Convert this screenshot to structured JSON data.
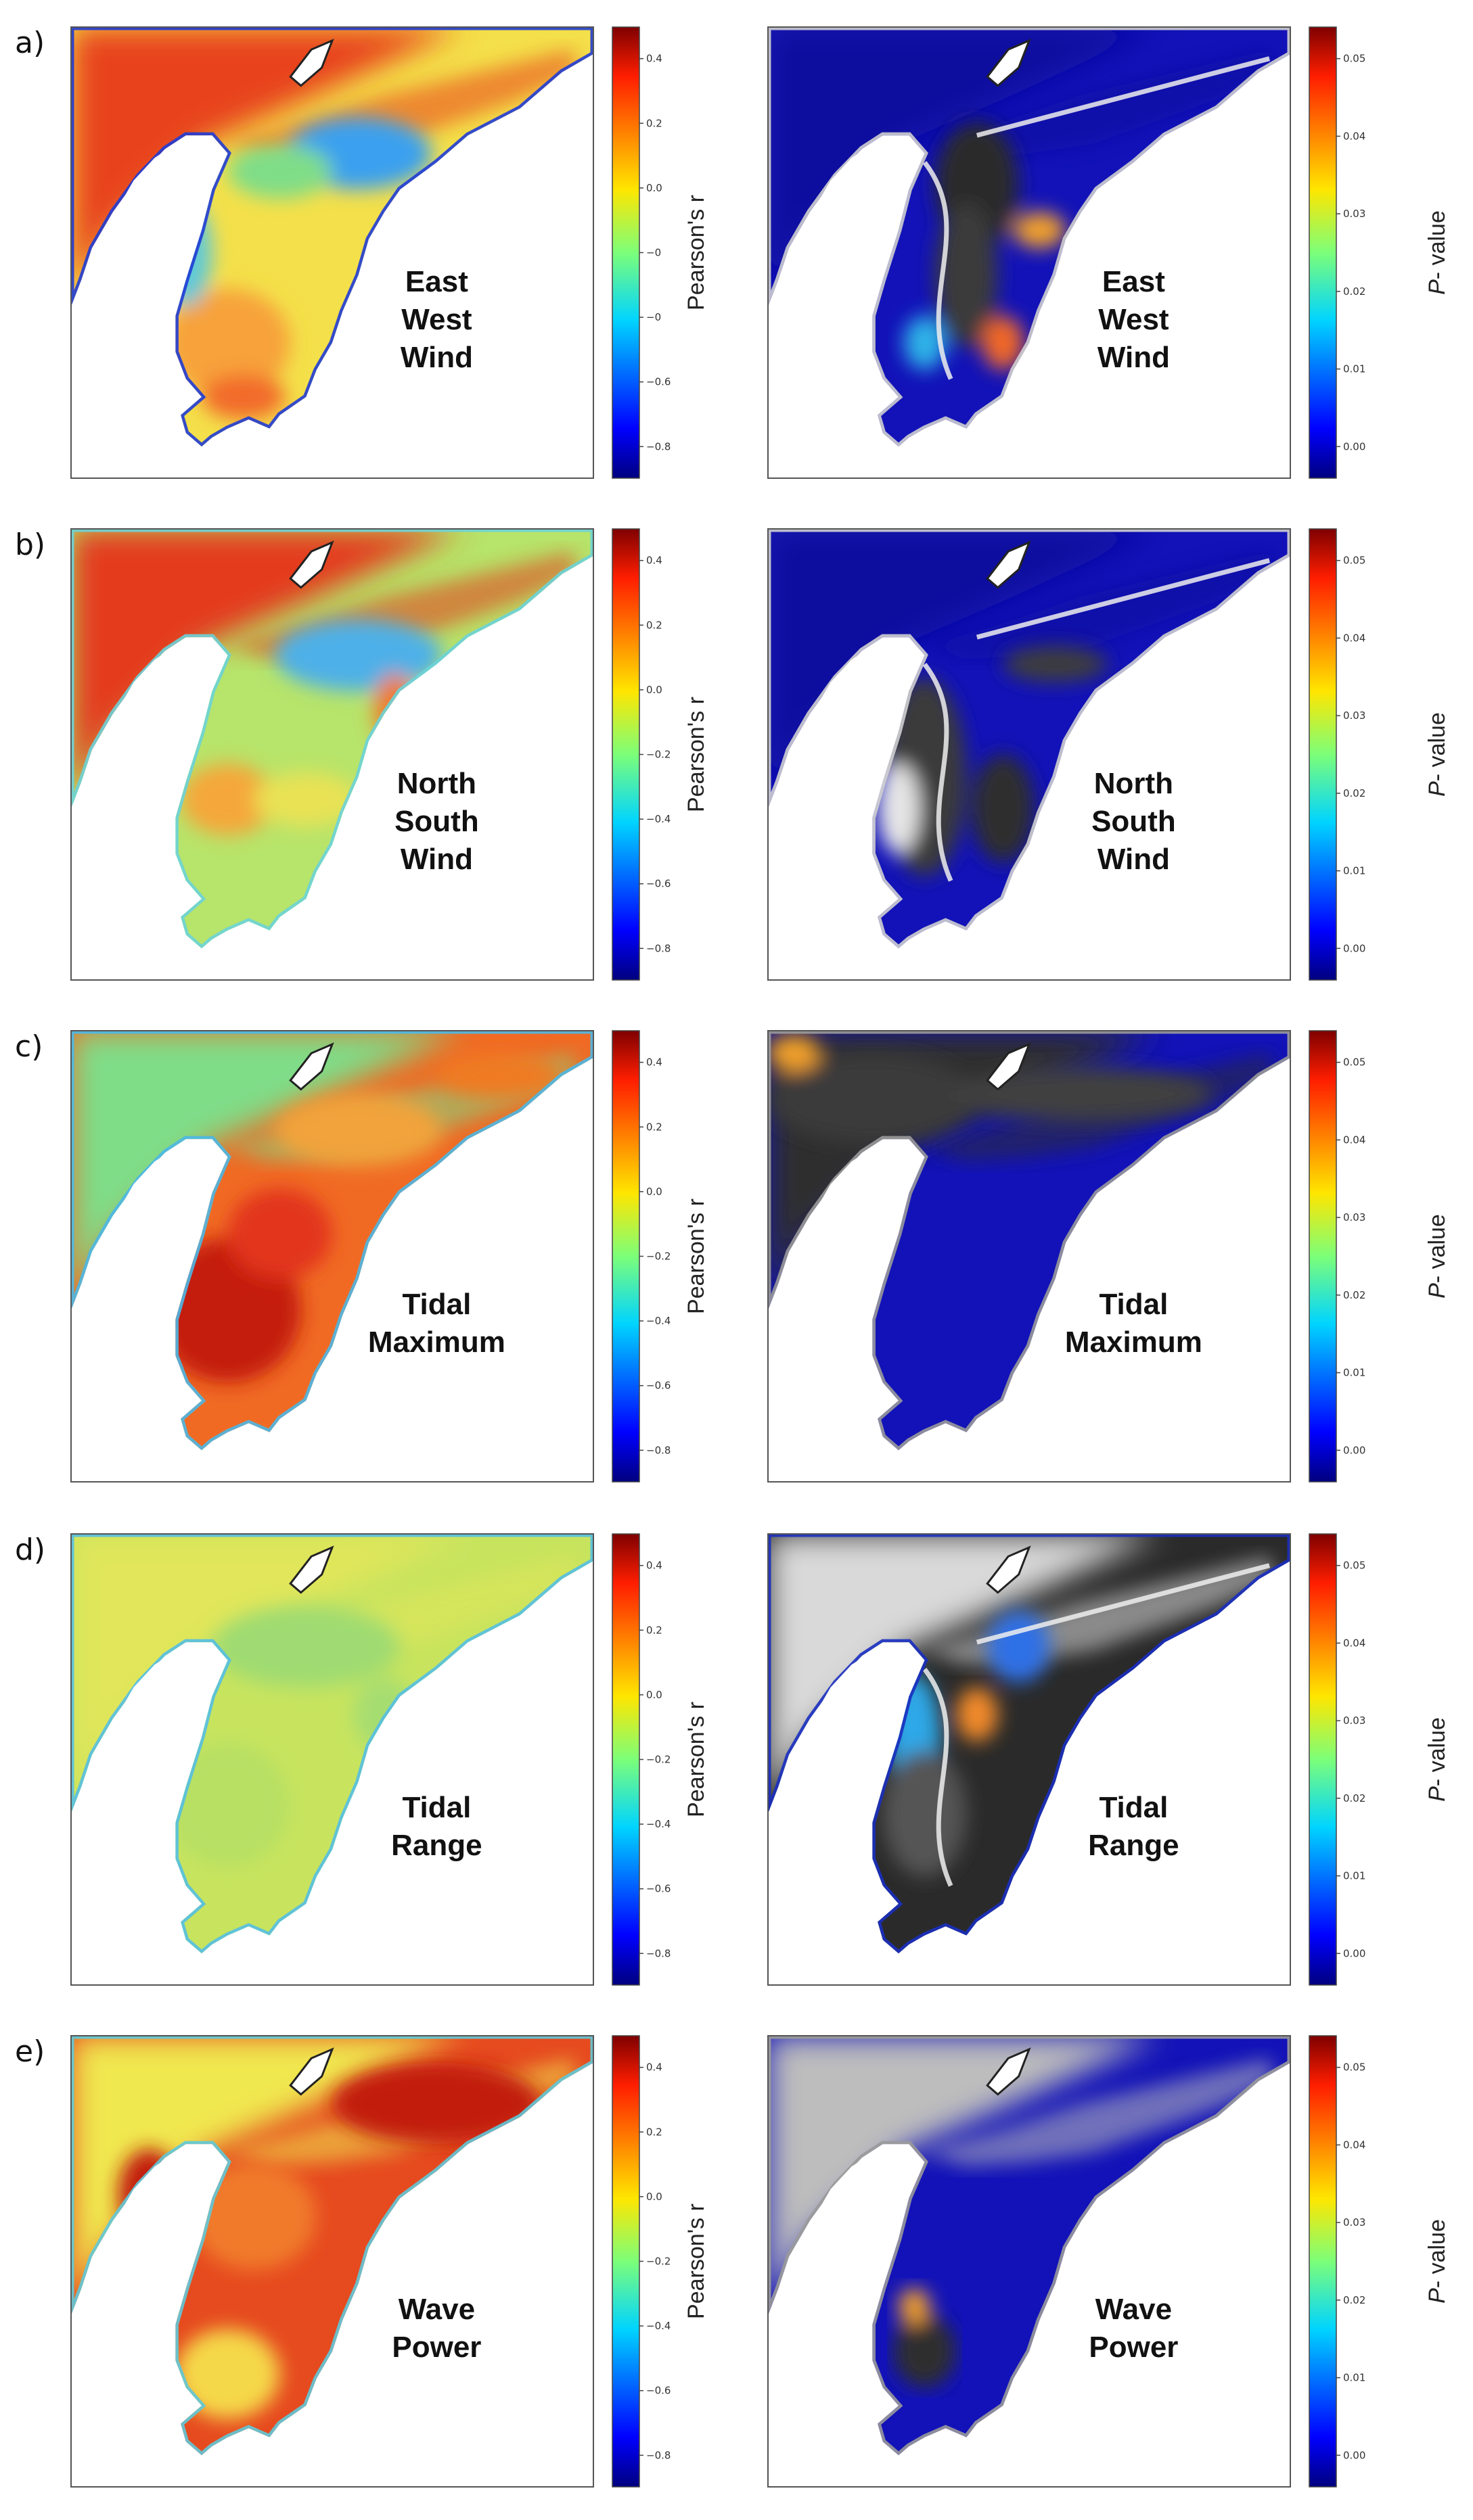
{
  "chart_data": [
    {
      "type": "heatmap",
      "panel": "a)",
      "variable_lines": [
        "East",
        "West",
        "Wind"
      ],
      "left": {
        "colorbar_label": "Pearson's r",
        "colorbar_ticks": [
          "0.4",
          "0.2",
          "0.0",
          "−0",
          "−0",
          "−0.6",
          "−0.8"
        ],
        "range": [
          -0.9,
          0.5
        ],
        "scheme": "rwest"
      },
      "right": {
        "colorbar_label_italic": "P",
        "colorbar_label_rest": "- value",
        "colorbar_ticks": [
          "0.05",
          "0.04",
          "0.03",
          "0.02",
          "0.01",
          "0.00"
        ],
        "range": [
          0.0,
          0.05
        ],
        "scheme": "pa"
      }
    },
    {
      "type": "heatmap",
      "panel": "b)",
      "variable_lines": [
        "North",
        "South",
        "Wind"
      ],
      "left": {
        "colorbar_label": "Pearson's r",
        "colorbar_ticks": [
          "0.4",
          "0.2",
          "0.0",
          "−0.2",
          "−0.4",
          "−0.6",
          "−0.8"
        ],
        "range": [
          -0.9,
          0.5
        ],
        "scheme": "rnorth"
      },
      "right": {
        "colorbar_label_italic": "P",
        "colorbar_label_rest": "- value",
        "colorbar_ticks": [
          "0.05",
          "0.04",
          "0.03",
          "0.02",
          "0.01",
          "0.00"
        ],
        "range": [
          0.0,
          0.05
        ],
        "scheme": "pb"
      }
    },
    {
      "type": "heatmap",
      "panel": "c)",
      "variable_lines": [
        "Tidal",
        "Maximum"
      ],
      "left": {
        "colorbar_label": "Pearson's r",
        "colorbar_ticks": [
          "0.4",
          "0.2",
          "0.0",
          "−0.2",
          "−0.4",
          "−0.6",
          "−0.8"
        ],
        "range": [
          -0.8,
          0.5
        ],
        "scheme": "rtidemax"
      },
      "right": {
        "colorbar_label_italic": "P",
        "colorbar_label_rest": "- value",
        "colorbar_ticks": [
          "0.05",
          "0.04",
          "0.03",
          "0.02",
          "0.01",
          "0.00"
        ],
        "range": [
          0.0,
          0.05
        ],
        "scheme": "pc"
      }
    },
    {
      "type": "heatmap",
      "panel": "d)",
      "variable_lines": [
        "Tidal",
        "Range"
      ],
      "left": {
        "colorbar_label": "Pearson's r",
        "colorbar_ticks": [
          "0.4",
          "0.2",
          "0.0",
          "−0.2",
          "−0.4",
          "−0.6",
          "−0.8"
        ],
        "range": [
          -0.8,
          0.5
        ],
        "scheme": "rtiderange"
      },
      "right": {
        "colorbar_label_italic": "P",
        "colorbar_label_rest": "- value",
        "colorbar_ticks": [
          "0.05",
          "0.04",
          "0.03",
          "0.02",
          "0.01",
          "0.00"
        ],
        "range": [
          0.0,
          0.05
        ],
        "scheme": "pd"
      }
    },
    {
      "type": "heatmap",
      "panel": "e)",
      "variable_lines": [
        "Wave",
        "Power"
      ],
      "left": {
        "colorbar_label": "Pearson's r",
        "colorbar_ticks": [
          "0.4",
          "0.2",
          "0.0",
          "−0.2",
          "−0.4",
          "−0.6",
          "−0.8"
        ],
        "range": [
          -0.8,
          0.5
        ],
        "scheme": "rwave"
      },
      "right": {
        "colorbar_label_italic": "P",
        "colorbar_label_rest": "- value",
        "colorbar_ticks": [
          "0.05",
          "0.04",
          "0.03",
          "0.02",
          "0.01",
          "0.00"
        ],
        "range": [
          0.0,
          0.05
        ],
        "scheme": "pe"
      }
    }
  ]
}
